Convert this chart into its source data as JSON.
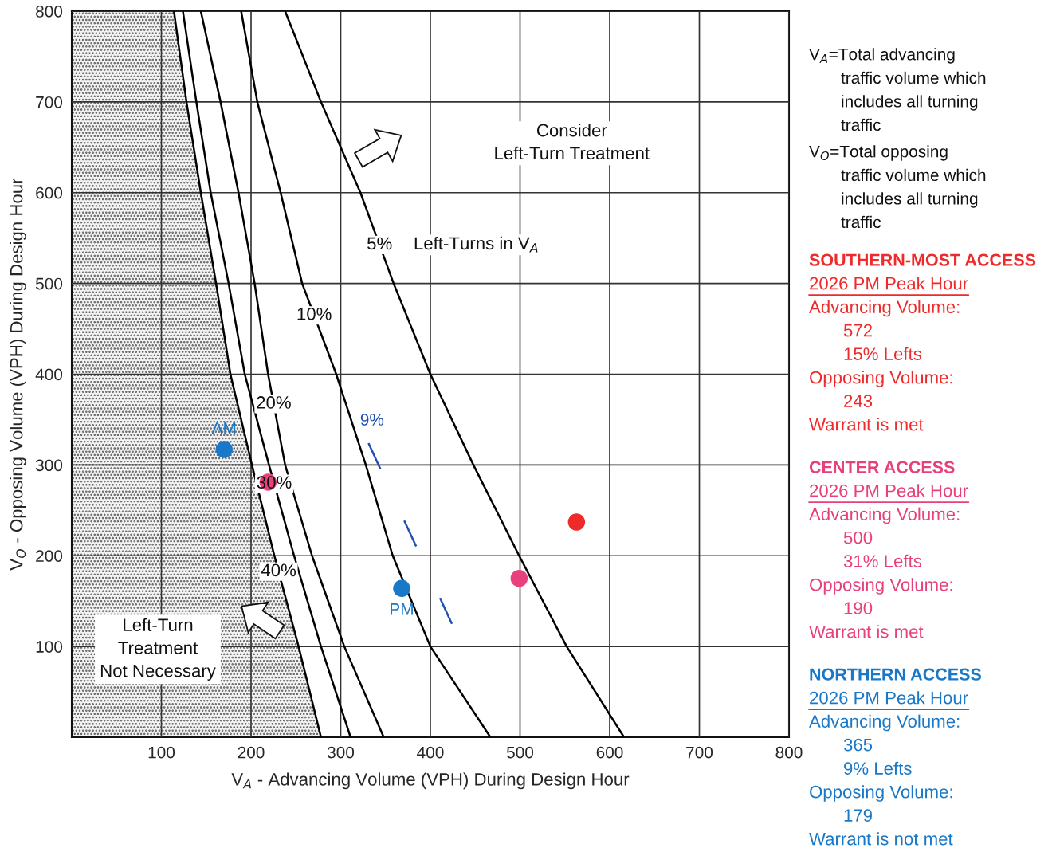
{
  "chart_data": {
    "type": "line",
    "xlabel": "V$_{A}$ - Advancing Volume (VPH) During Design Hour",
    "ylabel": "V$_{O}$ - Opposing Volume (VPH) During Design Hour",
    "xlim": [
      0,
      800
    ],
    "ylim": [
      0,
      800
    ],
    "xticks": [
      100,
      200,
      300,
      400,
      500,
      600,
      700,
      800
    ],
    "yticks": [
      100,
      200,
      300,
      400,
      500,
      600,
      700,
      800
    ],
    "grid": true,
    "legend": false,
    "series": [
      {
        "type": "area",
        "name": "40%",
        "color": "#000000",
        "x": [
          0,
          114,
          128,
          144,
          161,
          177,
          201,
          226,
          253,
          278
        ],
        "values": [
          800,
          800,
          700,
          600,
          500,
          400,
          300,
          200,
          100,
          0
        ]
      },
      {
        "name": "30%",
        "color": "#000000",
        "x": [
          124,
          139,
          155,
          175,
          193,
          220,
          248,
          278,
          311
        ],
        "values": [
          800,
          700,
          600,
          500,
          400,
          300,
          200,
          100,
          0
        ]
      },
      {
        "name": "20%",
        "color": "#000000",
        "x": [
          144,
          166,
          186,
          204,
          219,
          238,
          268,
          304,
          348
        ],
        "values": [
          800,
          700,
          600,
          500,
          400,
          300,
          200,
          100,
          0
        ]
      },
      {
        "name": "10%",
        "color": "#000000",
        "x": [
          189,
          207,
          233,
          257,
          295,
          328,
          358,
          400,
          467
        ],
        "values": [
          800,
          700,
          600,
          500,
          400,
          300,
          200,
          100,
          0
        ]
      },
      {
        "name": "5%",
        "color": "#000000",
        "x": [
          238,
          278,
          322,
          359,
          400,
          448,
          499,
          552,
          616
        ],
        "values": [
          800,
          700,
          600,
          500,
          400,
          300,
          200,
          100,
          0
        ]
      },
      {
        "color": "#1f4fb0",
        "line_style": "dashed",
        "x": [
          331,
          424
        ],
        "values": [
          324,
          125
        ]
      },
      {
        "type": "scatter",
        "color": "#ee2a2a",
        "marker": "circle",
        "x": [
          563
        ],
        "values": [
          237
        ]
      },
      {
        "type": "scatter",
        "color": "#e8407c",
        "marker": "circle",
        "x": [
          219,
          499
        ],
        "values": [
          281,
          175
        ]
      },
      {
        "type": "scatter",
        "color": "#1a78c8",
        "marker": "circle",
        "x": [
          170,
          368
        ],
        "values": [
          317,
          164
        ]
      }
    ],
    "annotations": [
      "Left-Turns in V$_{A}$",
      "Consider\nLeft-Turn Treatment",
      "Left-Turn\nTreatment\nNot Necessary",
      "AM",
      "PM",
      "9%",
      "V$_{A}$=Total advancing\ntraffic volume which\nincludes all turning\ntraffic",
      "V$_{O}$=Total opposing\ntraffic volume which\nincludes all turning\ntraffic",
      "SOUTHERN-MOST ACCESS",
      "2026 PM Peak Hour\nAdvancing Volume:\n572\n15% Lefts\nOpposing Volume:\n243\nWarrant is met",
      "CENTER ACCESS",
      "2026 PM Peak Hour\nAdvancing Volume:\n500\n31% Lefts\nOpposing Volume:\n190\nWarrant is met",
      "NORTHERN ACCESS",
      "2026 PM Peak Hour\nAdvancing Volume:\n365\n9% Lefts\nOpposing Volume:\n179\nWarrant is not met"
    ]
  }
}
